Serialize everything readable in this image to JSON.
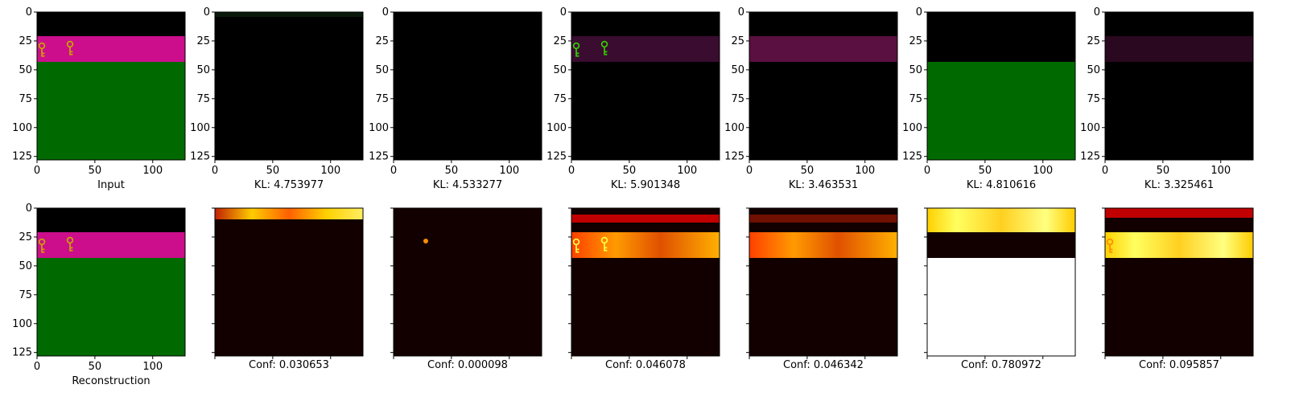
{
  "grid": {
    "x_ticks": [
      "0",
      "50",
      "100"
    ],
    "y_ticks": [
      "0",
      "25",
      "50",
      "75",
      "100",
      "125"
    ]
  },
  "top_row": [
    {
      "label": "Input"
    },
    {
      "label": "KL: 4.753977"
    },
    {
      "label": "KL: 4.533277"
    },
    {
      "label": "KL: 5.901348"
    },
    {
      "label": "KL: 3.463531"
    },
    {
      "label": "KL: 4.810616"
    },
    {
      "label": "KL: 3.325461"
    }
  ],
  "bottom_row": [
    {
      "label": "Reconstruction"
    },
    {
      "label": "Conf: 0.030653"
    },
    {
      "label": "Conf: 0.000098"
    },
    {
      "label": "Conf: 0.046078"
    },
    {
      "label": "Conf: 0.046342"
    },
    {
      "label": "Conf: 0.780972"
    },
    {
      "label": "Conf: 0.095857"
    }
  ],
  "colors": {
    "magenta": "#cc0e8c",
    "green": "#006a00",
    "key_yellow": "#c9a100",
    "key_green": "#33cc00",
    "heat_dark": "#120000",
    "heat_red": "#c00000",
    "heat_orange": "#ff8c00",
    "heat_yellow": "#ffff40",
    "heat_white": "#ffffff"
  }
}
